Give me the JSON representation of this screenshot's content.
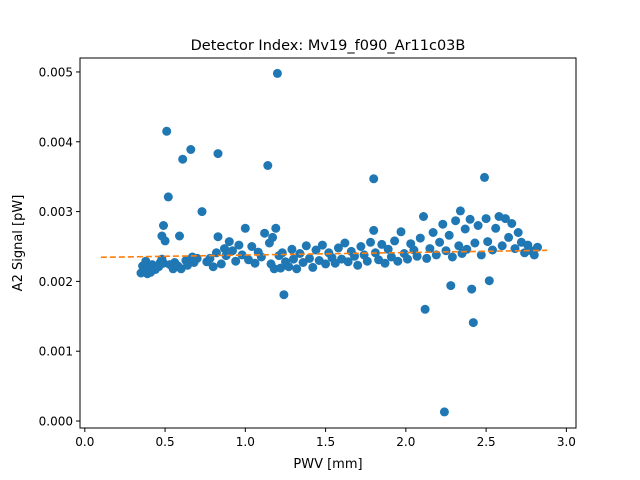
{
  "chart_data": {
    "type": "scatter",
    "title": "Detector Index: Mv19_f090_Ar11c03B",
    "xlabel": "PWV [mm]",
    "ylabel": "A2 Signal [pW]",
    "xlim": [
      -0.03,
      3.06
    ],
    "ylim": [
      -0.0001,
      0.0052
    ],
    "x_ticks": [
      0.0,
      0.5,
      1.0,
      1.5,
      2.0,
      2.5,
      3.0
    ],
    "x_tick_labels": [
      "0.0",
      "0.5",
      "1.0",
      "1.5",
      "2.0",
      "2.5",
      "3.0"
    ],
    "y_ticks": [
      0.0,
      0.001,
      0.002,
      0.003,
      0.004,
      0.005
    ],
    "y_tick_labels": [
      "0.000",
      "0.001",
      "0.002",
      "0.003",
      "0.004",
      "0.005"
    ],
    "grid": false,
    "legend": "none",
    "series": [
      {
        "name": "data",
        "kind": "scatter",
        "color": "#1f77b4",
        "points": [
          [
            0.35,
            0.00212
          ],
          [
            0.36,
            0.00222
          ],
          [
            0.37,
            0.00215
          ],
          [
            0.38,
            0.00229
          ],
          [
            0.39,
            0.00211
          ],
          [
            0.4,
            0.00219
          ],
          [
            0.41,
            0.00213
          ],
          [
            0.42,
            0.00224
          ],
          [
            0.44,
            0.00217
          ],
          [
            0.46,
            0.00221
          ],
          [
            0.47,
            0.00227
          ],
          [
            0.48,
            0.00232
          ],
          [
            0.49,
            0.00226
          ],
          [
            0.48,
            0.00265
          ],
          [
            0.49,
            0.0028
          ],
          [
            0.5,
            0.00258
          ],
          [
            0.51,
            0.00415
          ],
          [
            0.52,
            0.00321
          ],
          [
            0.53,
            0.00224
          ],
          [
            0.55,
            0.00218
          ],
          [
            0.56,
            0.00227
          ],
          [
            0.58,
            0.00222
          ],
          [
            0.59,
            0.00265
          ],
          [
            0.6,
            0.00218
          ],
          [
            0.61,
            0.00375
          ],
          [
            0.63,
            0.0023
          ],
          [
            0.64,
            0.00223
          ],
          [
            0.66,
            0.00389
          ],
          [
            0.67,
            0.00235
          ],
          [
            0.68,
            0.00227
          ],
          [
            0.7,
            0.00233
          ],
          [
            0.73,
            0.003
          ],
          [
            0.76,
            0.00228
          ],
          [
            0.78,
            0.00233
          ],
          [
            0.8,
            0.00221
          ],
          [
            0.82,
            0.00241
          ],
          [
            0.83,
            0.00383
          ],
          [
            0.83,
            0.00264
          ],
          [
            0.85,
            0.00225
          ],
          [
            0.87,
            0.00247
          ],
          [
            0.88,
            0.00237
          ],
          [
            0.9,
            0.00257
          ],
          [
            0.92,
            0.00244
          ],
          [
            0.94,
            0.00229
          ],
          [
            0.96,
            0.00252
          ],
          [
            0.98,
            0.00238
          ],
          [
            1.0,
            0.00276
          ],
          [
            1.02,
            0.00231
          ],
          [
            1.04,
            0.0025
          ],
          [
            1.06,
            0.00226
          ],
          [
            1.08,
            0.00242
          ],
          [
            1.1,
            0.00235
          ],
          [
            1.12,
            0.00269
          ],
          [
            1.14,
            0.00366
          ],
          [
            1.15,
            0.00255
          ],
          [
            1.16,
            0.00225
          ],
          [
            1.17,
            0.00263
          ],
          [
            1.18,
            0.00218
          ],
          [
            1.19,
            0.00276
          ],
          [
            1.2,
            0.00498
          ],
          [
            1.21,
            0.00237
          ],
          [
            1.22,
            0.00219
          ],
          [
            1.23,
            0.00241
          ],
          [
            1.24,
            0.00181
          ],
          [
            1.25,
            0.00228
          ],
          [
            1.27,
            0.00221
          ],
          [
            1.29,
            0.00246
          ],
          [
            1.3,
            0.00232
          ],
          [
            1.32,
            0.00218
          ],
          [
            1.34,
            0.0024
          ],
          [
            1.36,
            0.00227
          ],
          [
            1.38,
            0.00251
          ],
          [
            1.4,
            0.00233
          ],
          [
            1.42,
            0.0022
          ],
          [
            1.44,
            0.00245
          ],
          [
            1.46,
            0.0023
          ],
          [
            1.48,
            0.00252
          ],
          [
            1.5,
            0.00225
          ],
          [
            1.52,
            0.00241
          ],
          [
            1.54,
            0.00234
          ],
          [
            1.56,
            0.00226
          ],
          [
            1.58,
            0.00248
          ],
          [
            1.6,
            0.00232
          ],
          [
            1.62,
            0.00255
          ],
          [
            1.64,
            0.00228
          ],
          [
            1.66,
            0.00243
          ],
          [
            1.68,
            0.00236
          ],
          [
            1.7,
            0.00223
          ],
          [
            1.72,
            0.0025
          ],
          [
            1.74,
            0.00238
          ],
          [
            1.76,
            0.00229
          ],
          [
            1.78,
            0.00256
          ],
          [
            1.8,
            0.00347
          ],
          [
            1.8,
            0.00273
          ],
          [
            1.81,
            0.00241
          ],
          [
            1.83,
            0.00231
          ],
          [
            1.85,
            0.00253
          ],
          [
            1.87,
            0.00226
          ],
          [
            1.89,
            0.00246
          ],
          [
            1.91,
            0.00235
          ],
          [
            1.93,
            0.00258
          ],
          [
            1.95,
            0.00229
          ],
          [
            1.97,
            0.00271
          ],
          [
            1.99,
            0.0024
          ],
          [
            2.01,
            0.00232
          ],
          [
            2.03,
            0.00254
          ],
          [
            2.05,
            0.00245
          ],
          [
            2.07,
            0.00236
          ],
          [
            2.09,
            0.00262
          ],
          [
            2.11,
            0.00293
          ],
          [
            2.12,
            0.0016
          ],
          [
            2.13,
            0.00233
          ],
          [
            2.15,
            0.00247
          ],
          [
            2.17,
            0.0027
          ],
          [
            2.19,
            0.00238
          ],
          [
            2.21,
            0.00256
          ],
          [
            2.23,
            0.00282
          ],
          [
            2.24,
            0.00013
          ],
          [
            2.25,
            0.00244
          ],
          [
            2.27,
            0.00266
          ],
          [
            2.28,
            0.00194
          ],
          [
            2.29,
            0.00235
          ],
          [
            2.31,
            0.00287
          ],
          [
            2.33,
            0.00251
          ],
          [
            2.34,
            0.00301
          ],
          [
            2.35,
            0.0024
          ],
          [
            2.37,
            0.00275
          ],
          [
            2.38,
            0.00246
          ],
          [
            2.4,
            0.00289
          ],
          [
            2.41,
            0.00189
          ],
          [
            2.42,
            0.00141
          ],
          [
            2.43,
            0.00255
          ],
          [
            2.45,
            0.0028
          ],
          [
            2.47,
            0.00238
          ],
          [
            2.49,
            0.00349
          ],
          [
            2.5,
            0.0029
          ],
          [
            2.51,
            0.00257
          ],
          [
            2.52,
            0.00201
          ],
          [
            2.54,
            0.00245
          ],
          [
            2.56,
            0.00276
          ],
          [
            2.58,
            0.00293
          ],
          [
            2.6,
            0.00251
          ],
          [
            2.62,
            0.0029
          ],
          [
            2.64,
            0.00263
          ],
          [
            2.66,
            0.00283
          ],
          [
            2.68,
            0.00247
          ],
          [
            2.7,
            0.0027
          ],
          [
            2.72,
            0.00256
          ],
          [
            2.74,
            0.00241
          ],
          [
            2.76,
            0.00252
          ],
          [
            2.78,
            0.00244
          ],
          [
            2.8,
            0.00238
          ],
          [
            2.82,
            0.00249
          ]
        ]
      },
      {
        "name": "fit",
        "kind": "dashed-line",
        "color": "#ff7f0e",
        "x": [
          0.1,
          2.88
        ],
        "y": [
          0.002345,
          0.002445
        ]
      }
    ]
  }
}
